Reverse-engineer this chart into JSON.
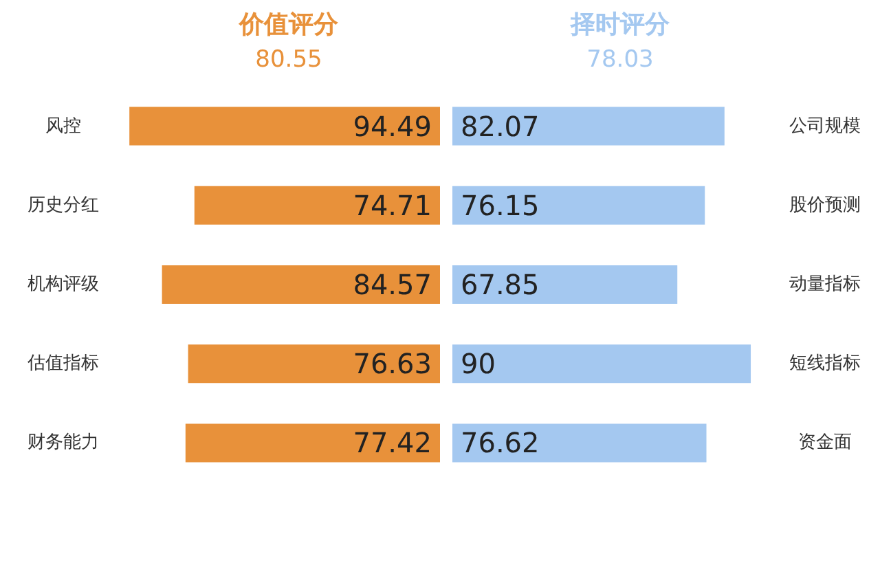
{
  "chart_data": [
    {
      "type": "bar",
      "orientation": "horizontal",
      "title": "价值评分",
      "subtitle": "80.55",
      "categories": [
        "风控",
        "历史分红",
        "机构评级",
        "估值指标",
        "财务能力"
      ],
      "values": [
        94.49,
        74.71,
        84.57,
        76.63,
        77.42
      ],
      "color": "#e8913a",
      "data_labels": true,
      "grid": false
    },
    {
      "type": "bar",
      "orientation": "horizontal",
      "title": "择时评分",
      "subtitle": "78.03",
      "categories": [
        "公司规模",
        "股价预测",
        "动量指标",
        "短线指标",
        "资金面"
      ],
      "values": [
        82.07,
        76.15,
        67.85,
        90,
        76.62
      ],
      "color": "#a4c8f0",
      "data_labels": true,
      "grid": false
    }
  ]
}
